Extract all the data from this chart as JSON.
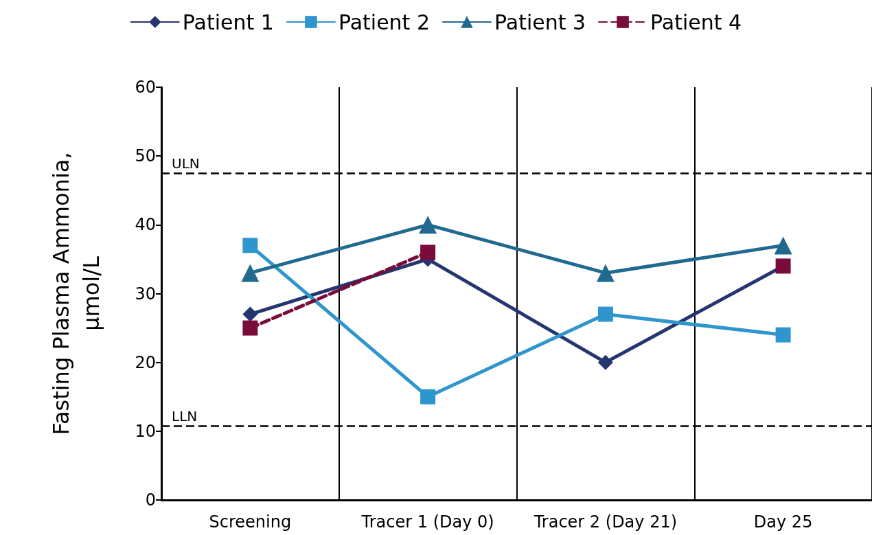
{
  "chart_data": {
    "type": "line",
    "ylabel": "Fasting Plasma Ammonia,\nμmol/L",
    "categories": [
      "Screening",
      "Tracer 1 (Day 0)",
      "Tracer 2 (Day 21)",
      "Day 25"
    ],
    "series": [
      {
        "name": "Patient 1",
        "color": "#253570",
        "marker": "diamond",
        "line_style": "solid",
        "values": [
          27,
          35,
          20,
          34
        ]
      },
      {
        "name": "Patient 2",
        "color": "#2e96cc",
        "marker": "square",
        "line_style": "solid",
        "values": [
          37,
          15,
          27,
          24
        ]
      },
      {
        "name": "Patient 3",
        "color": "#216a8f",
        "marker": "triangle",
        "line_style": "solid",
        "values": [
          33,
          40,
          33,
          37
        ]
      },
      {
        "name": "Patient 4",
        "color": "#7a0c3a",
        "marker": "square",
        "line_style": "dashed",
        "values": [
          25,
          36,
          null,
          34
        ]
      }
    ],
    "ylim": [
      0,
      60
    ],
    "yticks": [
      0,
      10,
      20,
      30,
      40,
      50,
      60
    ],
    "ref_lines": [
      {
        "axis": "y",
        "value": 47.5,
        "label": "ULN",
        "color": "#000000",
        "line_style": "dashed"
      },
      {
        "axis": "y",
        "value": 10.8,
        "label": "LLN",
        "color": "#000000",
        "line_style": "dashed"
      }
    ],
    "grid": "x",
    "legend": "top"
  }
}
